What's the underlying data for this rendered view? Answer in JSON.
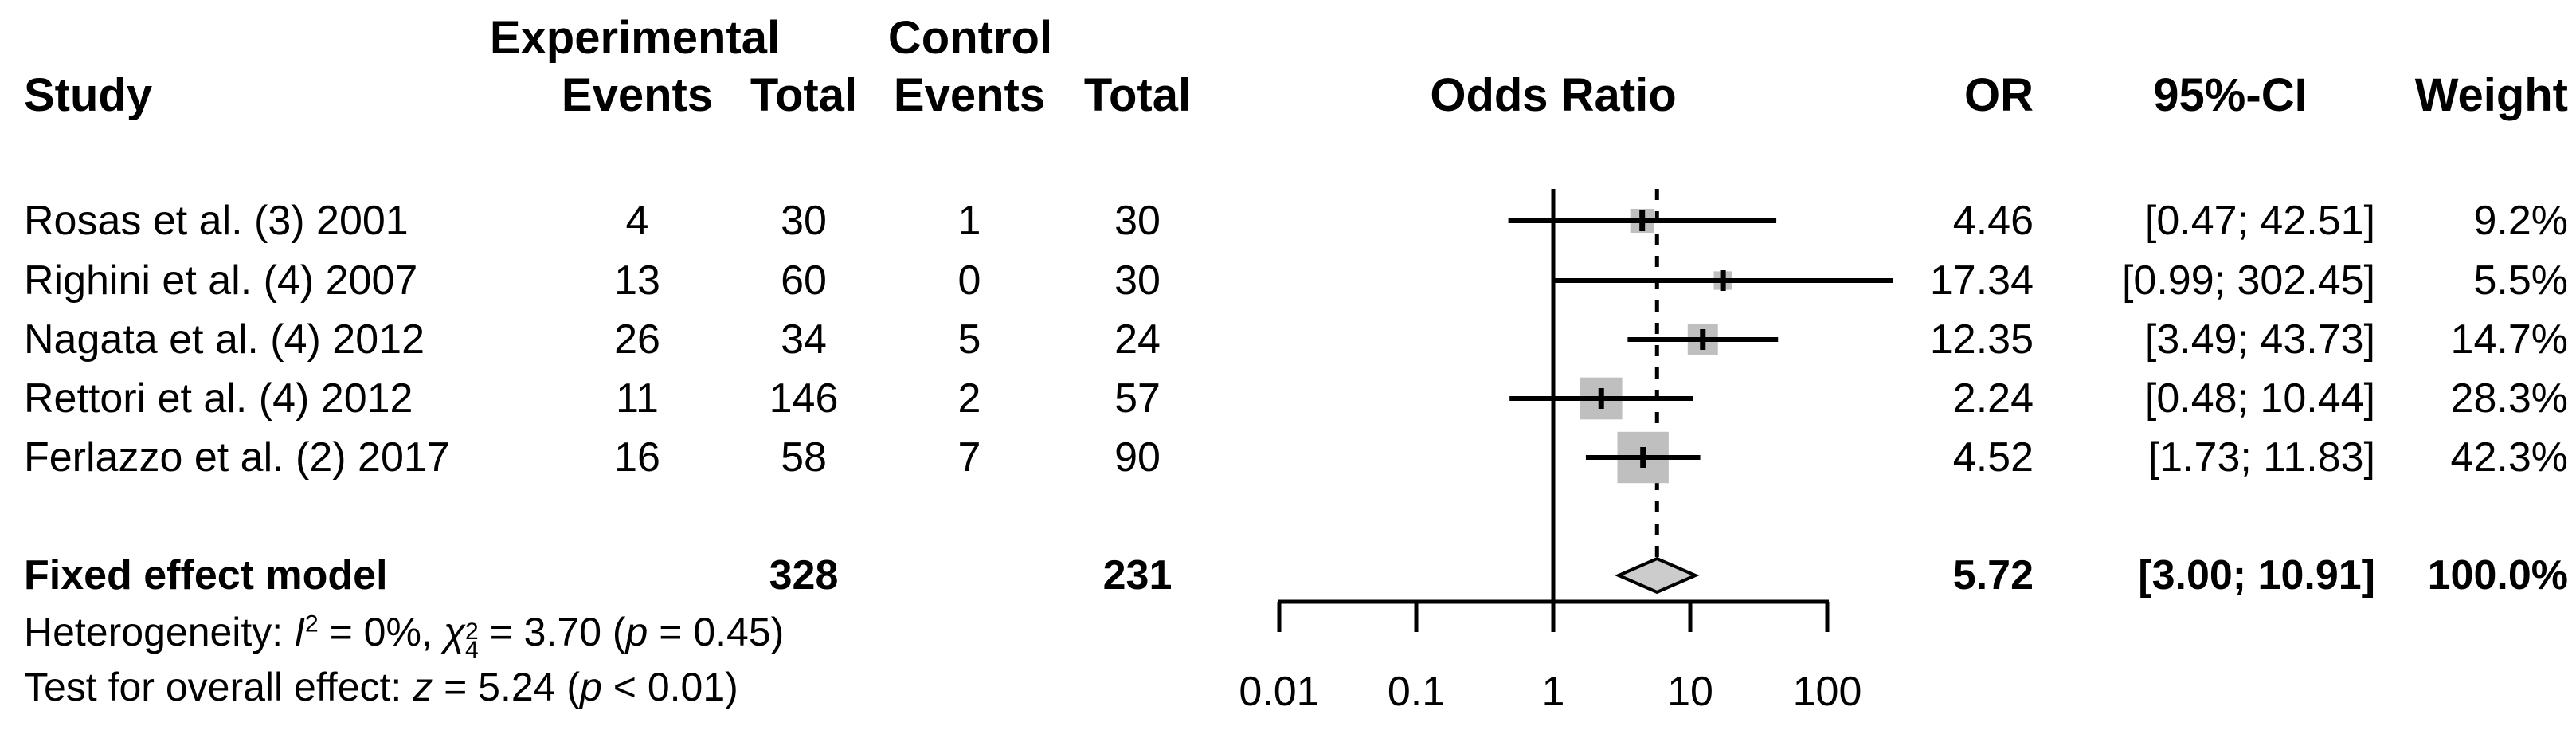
{
  "header": {
    "group_experimental": "Experimental",
    "group_control": "Control",
    "col_study": "Study",
    "col_events": "Events",
    "col_total": "Total",
    "col_odds_ratio_plot": "Odds Ratio",
    "col_or": "OR",
    "col_ci": "95%-CI",
    "col_weight": "Weight"
  },
  "colors": {
    "square_fill": "#bfbfbf",
    "diamond_fill": "#cccccc",
    "line": "#000000",
    "text": "#000000"
  },
  "chart_data": {
    "type": "forest",
    "effect_measure": "Odds Ratio",
    "x_axis": {
      "scale": "log10",
      "ticks": [
        0.01,
        0.1,
        1,
        10,
        100
      ],
      "tick_labels": [
        "0.01",
        "0.1",
        "1",
        "10",
        "100"
      ],
      "no_effect_x": 1,
      "pooled_estimate_x": 5.72
    },
    "studies": [
      {
        "name": "Rosas et al. (3) 2001",
        "exp_events": "4",
        "exp_total": "30",
        "ctrl_events": "1",
        "ctrl_total": "30",
        "or_label": "4.46",
        "ci_label": "[0.47; 42.51]",
        "weight_label": "9.2%",
        "or": 4.46,
        "ci_low": 0.47,
        "ci_high": 42.51,
        "weight_pct": 9.2
      },
      {
        "name": "Righini et al. (4) 2007",
        "exp_events": "13",
        "exp_total": "60",
        "ctrl_events": "0",
        "ctrl_total": "30",
        "or_label": "17.34",
        "ci_label": "[0.99; 302.45]",
        "weight_label": "5.5%",
        "or": 17.34,
        "ci_low": 0.99,
        "ci_high": 302.45,
        "weight_pct": 5.5
      },
      {
        "name": "Nagata et al. (4) 2012",
        "exp_events": "26",
        "exp_total": "34",
        "ctrl_events": "5",
        "ctrl_total": "24",
        "or_label": "12.35",
        "ci_label": "[3.49; 43.73]",
        "weight_label": "14.7%",
        "or": 12.35,
        "ci_low": 3.49,
        "ci_high": 43.73,
        "weight_pct": 14.7
      },
      {
        "name": "Rettori et al. (4) 2012",
        "exp_events": "11",
        "exp_total": "146",
        "ctrl_events": "2",
        "ctrl_total": "57",
        "or_label": "2.24",
        "ci_label": "[0.48; 10.44]",
        "weight_label": "28.3%",
        "or": 2.24,
        "ci_low": 0.48,
        "ci_high": 10.44,
        "weight_pct": 28.3
      },
      {
        "name": "Ferlazzo et al. (2) 2017",
        "exp_events": "16",
        "exp_total": "58",
        "ctrl_events": "7",
        "ctrl_total": "90",
        "or_label": "4.52",
        "ci_label": "[1.73; 11.83]",
        "weight_label": "42.3%",
        "or": 4.52,
        "ci_low": 1.73,
        "ci_high": 11.83,
        "weight_pct": 42.3
      }
    ],
    "summary": {
      "name": "Fixed effect model",
      "exp_total": "328",
      "ctrl_total": "231",
      "or_label": "5.72",
      "ci_label": "[3.00; 10.91]",
      "weight_label": "100.0%",
      "or": 5.72,
      "ci_low": 3.0,
      "ci_high": 10.91
    }
  },
  "footer": {
    "het": {
      "label": "Heterogeneity: ",
      "i_sym": "I",
      "i_sup": "2",
      "i_rest": " = 0%, ",
      "chi_sym": "χ",
      "chi_sup": "2",
      "chi_sub": "4",
      "chi_rest": " = 3.70 (",
      "p_sym": "p",
      "p_rest": " = 0.45)"
    },
    "test": {
      "label": "Test for overall effect: ",
      "z_sym": "z",
      "z_rest": " = 5.24 (",
      "p_sym": "p",
      "p_rest": " < 0.01)"
    }
  }
}
